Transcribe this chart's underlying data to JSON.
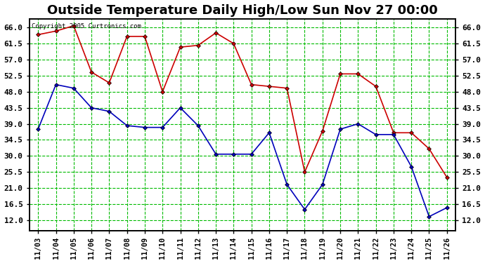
{
  "title": "Outside Temperature Daily High/Low Sun Nov 27 00:00",
  "copyright": "Copyright 2005 Curtronics.com",
  "x_labels": [
    "11/03",
    "11/04",
    "11/05",
    "11/06",
    "11/07",
    "11/08",
    "11/09",
    "11/10",
    "11/11",
    "11/12",
    "11/13",
    "11/14",
    "11/15",
    "11/16",
    "11/17",
    "11/18",
    "11/19",
    "11/20",
    "11/21",
    "11/22",
    "11/23",
    "11/24",
    "11/25",
    "11/26"
  ],
  "high_temps": [
    64.0,
    65.0,
    66.5,
    53.5,
    50.5,
    63.5,
    63.5,
    48.0,
    60.5,
    61.0,
    64.5,
    61.5,
    50.0,
    49.5,
    49.0,
    25.5,
    37.0,
    53.0,
    53.0,
    49.5,
    36.5,
    36.5,
    32.0,
    24.0
  ],
  "low_temps": [
    37.5,
    50.0,
    49.0,
    43.5,
    42.5,
    38.5,
    38.0,
    38.0,
    43.5,
    38.5,
    30.5,
    30.5,
    30.5,
    36.5,
    22.0,
    15.0,
    22.0,
    37.5,
    39.0,
    36.0,
    36.0,
    27.0,
    13.0,
    15.5
  ],
  "high_color": "#cc0000",
  "low_color": "#0000bb",
  "bg_color": "#ffffff",
  "grid_color": "#00bb00",
  "title_fontsize": 13,
  "ylim_min": 9.0,
  "ylim_max": 68.5,
  "yticks": [
    12.0,
    16.5,
    21.0,
    25.5,
    30.0,
    34.5,
    39.0,
    43.5,
    48.0,
    52.5,
    57.0,
    61.5,
    66.0
  ]
}
